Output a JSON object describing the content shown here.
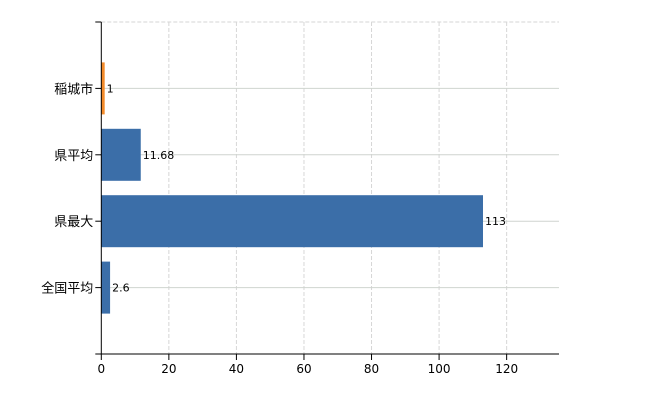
{
  "chart_data": {
    "type": "bar",
    "orientation": "horizontal",
    "categories": [
      "稲城市",
      "県平均",
      "県最大",
      "全国平均"
    ],
    "values": [
      1,
      11.68,
      113,
      2.6
    ],
    "data_labels": [
      "1",
      "11.68",
      "113",
      "2.6"
    ],
    "bar_colors": [
      "#f28a2a",
      "#3b6ea8",
      "#3b6ea8",
      "#3b6ea8"
    ],
    "title": "",
    "xlabel": "",
    "ylabel": "",
    "xlim": [
      0,
      135.5
    ],
    "xticks": [
      0,
      20,
      40,
      60,
      80,
      100,
      120
    ],
    "grid": true,
    "legend": "none"
  }
}
